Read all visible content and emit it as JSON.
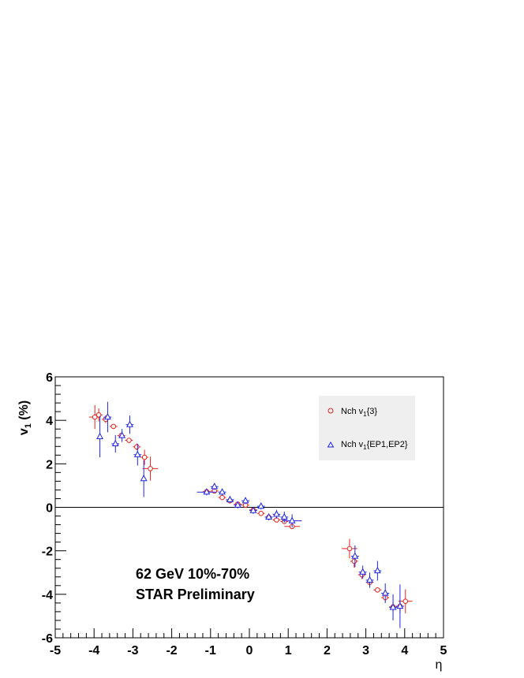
{
  "chart_data": {
    "type": "scatter",
    "title": "",
    "xlabel": "η",
    "ylabel": {
      "main": "v",
      "sub": "1",
      "suffix": " (%)"
    },
    "xlim": [
      -5,
      5
    ],
    "ylim": [
      -6,
      6
    ],
    "xticks": [
      "-5",
      "-4",
      "-3",
      "-2",
      "-1",
      "0",
      "1",
      "2",
      "3",
      "4",
      "5"
    ],
    "yticks": [
      "-6",
      "-4",
      "-2",
      "0",
      "2",
      "4",
      "6"
    ],
    "zero_line": true,
    "grid": false,
    "legend_position": "top-right",
    "annotations": [
      "62 GeV 10%-70%",
      "STAR Preliminary"
    ],
    "series": [
      {
        "name": "Nch v1{3}",
        "legend": {
          "pre": "Nch v",
          "sub": "1",
          "post": "{3}"
        },
        "marker": "open-circle",
        "color": "#e8241c",
        "points": [
          {
            "x": -3.98,
            "y": 4.15,
            "xerr": 0.15,
            "yerr": 0.55
          },
          {
            "x": -3.88,
            "y": 4.25,
            "xerr": 0.1,
            "yerr": 0.3
          },
          {
            "x": -3.7,
            "y": 4.05,
            "xerr": 0.1,
            "yerr": 0.18
          },
          {
            "x": -3.5,
            "y": 3.72,
            "xerr": 0.1,
            "yerr": 0.1
          },
          {
            "x": -3.3,
            "y": 3.3,
            "xerr": 0.1,
            "yerr": 0.1
          },
          {
            "x": -3.1,
            "y": 3.08,
            "xerr": 0.1,
            "yerr": 0.08
          },
          {
            "x": -2.9,
            "y": 2.78,
            "xerr": 0.1,
            "yerr": 0.15
          },
          {
            "x": -2.7,
            "y": 2.3,
            "xerr": 0.1,
            "yerr": 0.35
          },
          {
            "x": -2.55,
            "y": 1.78,
            "xerr": 0.2,
            "yerr": 0.55
          },
          {
            "x": -1.1,
            "y": 0.72,
            "xerr": 0.1,
            "yerr": 0.08
          },
          {
            "x": -0.9,
            "y": 0.75,
            "xerr": 0.1,
            "yerr": 0.08
          },
          {
            "x": -0.7,
            "y": 0.45,
            "xerr": 0.1,
            "yerr": 0.08
          },
          {
            "x": -0.5,
            "y": 0.3,
            "xerr": 0.1,
            "yerr": 0.07
          },
          {
            "x": -0.3,
            "y": 0.15,
            "xerr": 0.1,
            "yerr": 0.07
          },
          {
            "x": -0.1,
            "y": 0.1,
            "xerr": 0.1,
            "yerr": 0.07
          },
          {
            "x": 0.1,
            "y": -0.12,
            "xerr": 0.1,
            "yerr": 0.07
          },
          {
            "x": 0.3,
            "y": -0.28,
            "xerr": 0.1,
            "yerr": 0.07
          },
          {
            "x": 0.5,
            "y": -0.45,
            "xerr": 0.1,
            "yerr": 0.07
          },
          {
            "x": 0.7,
            "y": -0.58,
            "xerr": 0.1,
            "yerr": 0.08
          },
          {
            "x": 0.9,
            "y": -0.65,
            "xerr": 0.1,
            "yerr": 0.08
          },
          {
            "x": 1.1,
            "y": -0.88,
            "xerr": 0.2,
            "yerr": 0.1
          },
          {
            "x": 2.58,
            "y": -1.9,
            "xerr": 0.2,
            "yerr": 0.45
          },
          {
            "x": 2.7,
            "y": -2.48,
            "xerr": 0.1,
            "yerr": 0.3
          },
          {
            "x": 2.9,
            "y": -3.1,
            "xerr": 0.1,
            "yerr": 0.2
          },
          {
            "x": 3.1,
            "y": -3.45,
            "xerr": 0.1,
            "yerr": 0.15
          },
          {
            "x": 3.3,
            "y": -3.8,
            "xerr": 0.1,
            "yerr": 0.12
          },
          {
            "x": 3.5,
            "y": -4.15,
            "xerr": 0.1,
            "yerr": 0.15
          },
          {
            "x": 3.7,
            "y": -4.58,
            "xerr": 0.1,
            "yerr": 0.2
          },
          {
            "x": 3.88,
            "y": -4.55,
            "xerr": 0.1,
            "yerr": 0.3
          },
          {
            "x": 4.02,
            "y": -4.32,
            "xerr": 0.18,
            "yerr": 0.55
          }
        ]
      },
      {
        "name": "Nch v1{EP1,EP2}",
        "legend": {
          "pre": "Nch v",
          "sub": "1",
          "post": "{EP1,EP2}"
        },
        "marker": "open-triangle",
        "color": "#1c24e8",
        "points": [
          {
            "x": -3.85,
            "y": 3.25,
            "xerr": 0,
            "yerr": 0.95
          },
          {
            "x": -3.65,
            "y": 4.15,
            "xerr": 0.1,
            "yerr": 0.7
          },
          {
            "x": -3.45,
            "y": 2.92,
            "xerr": 0.1,
            "yerr": 0.4
          },
          {
            "x": -3.28,
            "y": 3.3,
            "xerr": 0.05,
            "yerr": 0.3
          },
          {
            "x": -3.08,
            "y": 3.8,
            "xerr": 0.1,
            "yerr": 0.42
          },
          {
            "x": -2.88,
            "y": 2.42,
            "xerr": 0.1,
            "yerr": 0.5
          },
          {
            "x": -2.72,
            "y": 1.32,
            "xerr": 0.05,
            "yerr": 0.85
          },
          {
            "x": -1.1,
            "y": 0.7,
            "xerr": 0.25,
            "yerr": 0.15
          },
          {
            "x": -0.9,
            "y": 0.95,
            "xerr": 0.1,
            "yerr": 0.15
          },
          {
            "x": -0.7,
            "y": 0.7,
            "xerr": 0.1,
            "yerr": 0.15
          },
          {
            "x": -0.5,
            "y": 0.35,
            "xerr": 0.1,
            "yerr": 0.15
          },
          {
            "x": -0.3,
            "y": 0.1,
            "xerr": 0.1,
            "yerr": 0.15
          },
          {
            "x": -0.1,
            "y": 0.3,
            "xerr": 0.1,
            "yerr": 0.15
          },
          {
            "x": 0.1,
            "y": -0.15,
            "xerr": 0.1,
            "yerr": 0.15
          },
          {
            "x": 0.3,
            "y": 0.05,
            "xerr": 0.1,
            "yerr": 0.15
          },
          {
            "x": 0.5,
            "y": -0.45,
            "xerr": 0.1,
            "yerr": 0.15
          },
          {
            "x": 0.7,
            "y": -0.32,
            "xerr": 0.1,
            "yerr": 0.2
          },
          {
            "x": 0.9,
            "y": -0.45,
            "xerr": 0.1,
            "yerr": 0.25
          },
          {
            "x": 1.1,
            "y": -0.62,
            "xerr": 0.25,
            "yerr": 0.3
          },
          {
            "x": 2.72,
            "y": -2.25,
            "xerr": 0.1,
            "yerr": 0.5
          },
          {
            "x": 2.92,
            "y": -2.98,
            "xerr": 0.1,
            "yerr": 0.3
          },
          {
            "x": 3.1,
            "y": -3.35,
            "xerr": 0.1,
            "yerr": 0.35
          },
          {
            "x": 3.3,
            "y": -2.92,
            "xerr": 0.1,
            "yerr": 0.45
          },
          {
            "x": 3.5,
            "y": -3.95,
            "xerr": 0.1,
            "yerr": 0.45
          },
          {
            "x": 3.7,
            "y": -4.6,
            "xerr": 0.1,
            "yerr": 0.6
          },
          {
            "x": 3.88,
            "y": -4.55,
            "xerr": 0.1,
            "yerr": 1.0
          }
        ]
      }
    ]
  }
}
